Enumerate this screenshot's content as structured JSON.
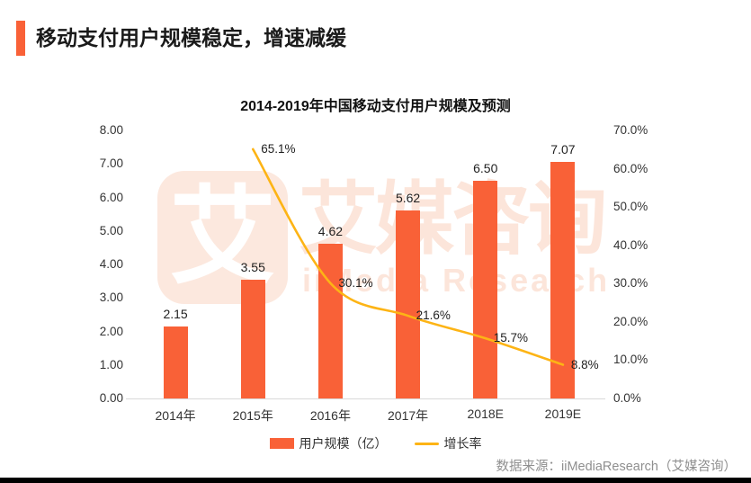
{
  "header": {
    "title": "移动支付用户规模稳定，增速减缓"
  },
  "watermark": {
    "logo_char": "艾",
    "cn": "艾媒咨询",
    "en": "iiMedia Research"
  },
  "source": {
    "text": "数据来源：iiMediaResearch（艾媒咨询）"
  },
  "colors": {
    "bar": "#F96137",
    "line": "#FDB415",
    "accent": "#F96137",
    "watermark": "#FCE5DA",
    "axis_line": "#D9D9D9",
    "source_text": "#8F8F8F"
  },
  "chart_data": {
    "type": "combo",
    "title": "2014-2019年中国移动支付用户规模及预测",
    "categories": [
      "2014年",
      "2015年",
      "2016年",
      "2017年",
      "2018E",
      "2019E"
    ],
    "series": [
      {
        "name": "用户规模（亿）",
        "type": "bar",
        "axis": "left",
        "color": "#F96137",
        "values": [
          2.15,
          3.55,
          4.62,
          5.62,
          6.5,
          7.07
        ],
        "labels": [
          "2.15",
          "3.55",
          "4.62",
          "5.62",
          "6.50",
          "7.07"
        ]
      },
      {
        "name": "增长率",
        "type": "line",
        "axis": "right",
        "color": "#FDB415",
        "values": [
          null,
          65.1,
          30.1,
          21.6,
          15.7,
          8.8
        ],
        "labels": [
          "",
          "65.1%",
          "30.1%",
          "21.6%",
          "15.7%",
          "8.8%"
        ]
      }
    ],
    "left_axis": {
      "min": 0,
      "max": 8,
      "ticks": [
        "0.00",
        "1.00",
        "2.00",
        "3.00",
        "4.00",
        "5.00",
        "6.00",
        "7.00",
        "8.00"
      ]
    },
    "right_axis": {
      "min": 0,
      "max": 70,
      "ticks": [
        "0.0%",
        "10.0%",
        "20.0%",
        "30.0%",
        "40.0%",
        "50.0%",
        "60.0%",
        "70.0%"
      ]
    },
    "legend_position": "bottom",
    "grid": false
  }
}
